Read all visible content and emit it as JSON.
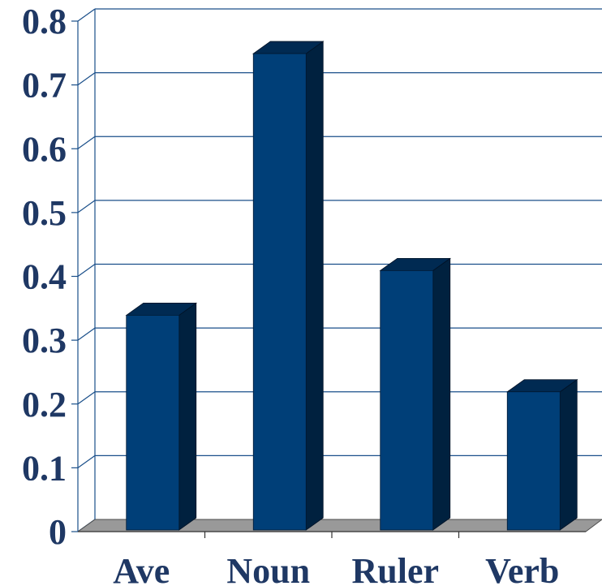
{
  "chart_data": {
    "type": "bar",
    "categories": [
      "Ave",
      "Noun",
      "Ruler",
      "Verb"
    ],
    "values": [
      0.32,
      0.73,
      0.39,
      0.2
    ],
    "ylim": [
      0,
      0.8
    ],
    "yticks": [
      "0",
      "0.1",
      "0.2",
      "0.3",
      "0.4",
      "0.5",
      "0.6",
      "0.7",
      "0.8"
    ],
    "grid": true,
    "style": "3d-bar",
    "colors": {
      "bar_front": "#003f78",
      "bar_side": "#00213f",
      "bar_top": "#002a52",
      "floor": "#999999",
      "grid": "#1a4f8a",
      "text": "#1f3864"
    }
  }
}
